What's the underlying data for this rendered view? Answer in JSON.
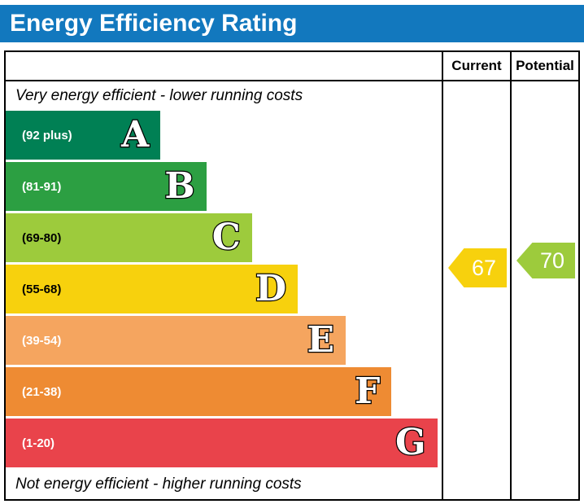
{
  "title": "Energy Efficiency Rating",
  "title_bar_color": "#1278be",
  "columns": {
    "current_label": "Current",
    "potential_label": "Potential"
  },
  "captions": {
    "top": "Very energy efficient - lower running costs",
    "bottom": "Not energy efficient - higher running costs"
  },
  "bands": [
    {
      "letter": "A",
      "range": "(92 plus)",
      "color": "#008054",
      "label_color": "#ffffff",
      "width_pct": 35.5
    },
    {
      "letter": "B",
      "range": "(81-91)",
      "color": "#2c9f42",
      "label_color": "#ffffff",
      "width_pct": 46
    },
    {
      "letter": "C",
      "range": "(69-80)",
      "color": "#9dcb3c",
      "label_color": "#000000",
      "width_pct": 56.5
    },
    {
      "letter": "D",
      "range": "(55-68)",
      "color": "#f7d10d",
      "label_color": "#000000",
      "width_pct": 67
    },
    {
      "letter": "E",
      "range": "(39-54)",
      "color": "#f5a55f",
      "label_color": "#ffffff",
      "width_pct": 78
    },
    {
      "letter": "F",
      "range": "(21-38)",
      "color": "#ee8b33",
      "label_color": "#ffffff",
      "width_pct": 88.5
    },
    {
      "letter": "G",
      "range": "(1-20)",
      "color": "#e9434b",
      "label_color": "#ffffff",
      "width_pct": 99
    }
  ],
  "current": {
    "value": "67",
    "color": "#f7d10d"
  },
  "potential": {
    "value": "70",
    "color": "#9dcb3c"
  },
  "chart_data": {
    "type": "bar",
    "title": "Energy Efficiency Rating",
    "categories": [
      "A",
      "B",
      "C",
      "D",
      "E",
      "F",
      "G"
    ],
    "band_ranges": [
      "92 plus",
      "81-91",
      "69-80",
      "55-68",
      "39-54",
      "21-38",
      "1-20"
    ],
    "band_colors": [
      "#008054",
      "#2c9f42",
      "#9dcb3c",
      "#f7d10d",
      "#f5a55f",
      "#ee8b33",
      "#e9434b"
    ],
    "bar_widths_pct": [
      35.5,
      46,
      56.5,
      67,
      78,
      88.5,
      99
    ],
    "current_rating": 67,
    "potential_rating": 70,
    "current_band": "D",
    "potential_band": "C",
    "column_headers": [
      "Current",
      "Potential"
    ],
    "annotations": [
      "Very energy efficient - lower running costs",
      "Not energy efficient - higher running costs"
    ]
  }
}
